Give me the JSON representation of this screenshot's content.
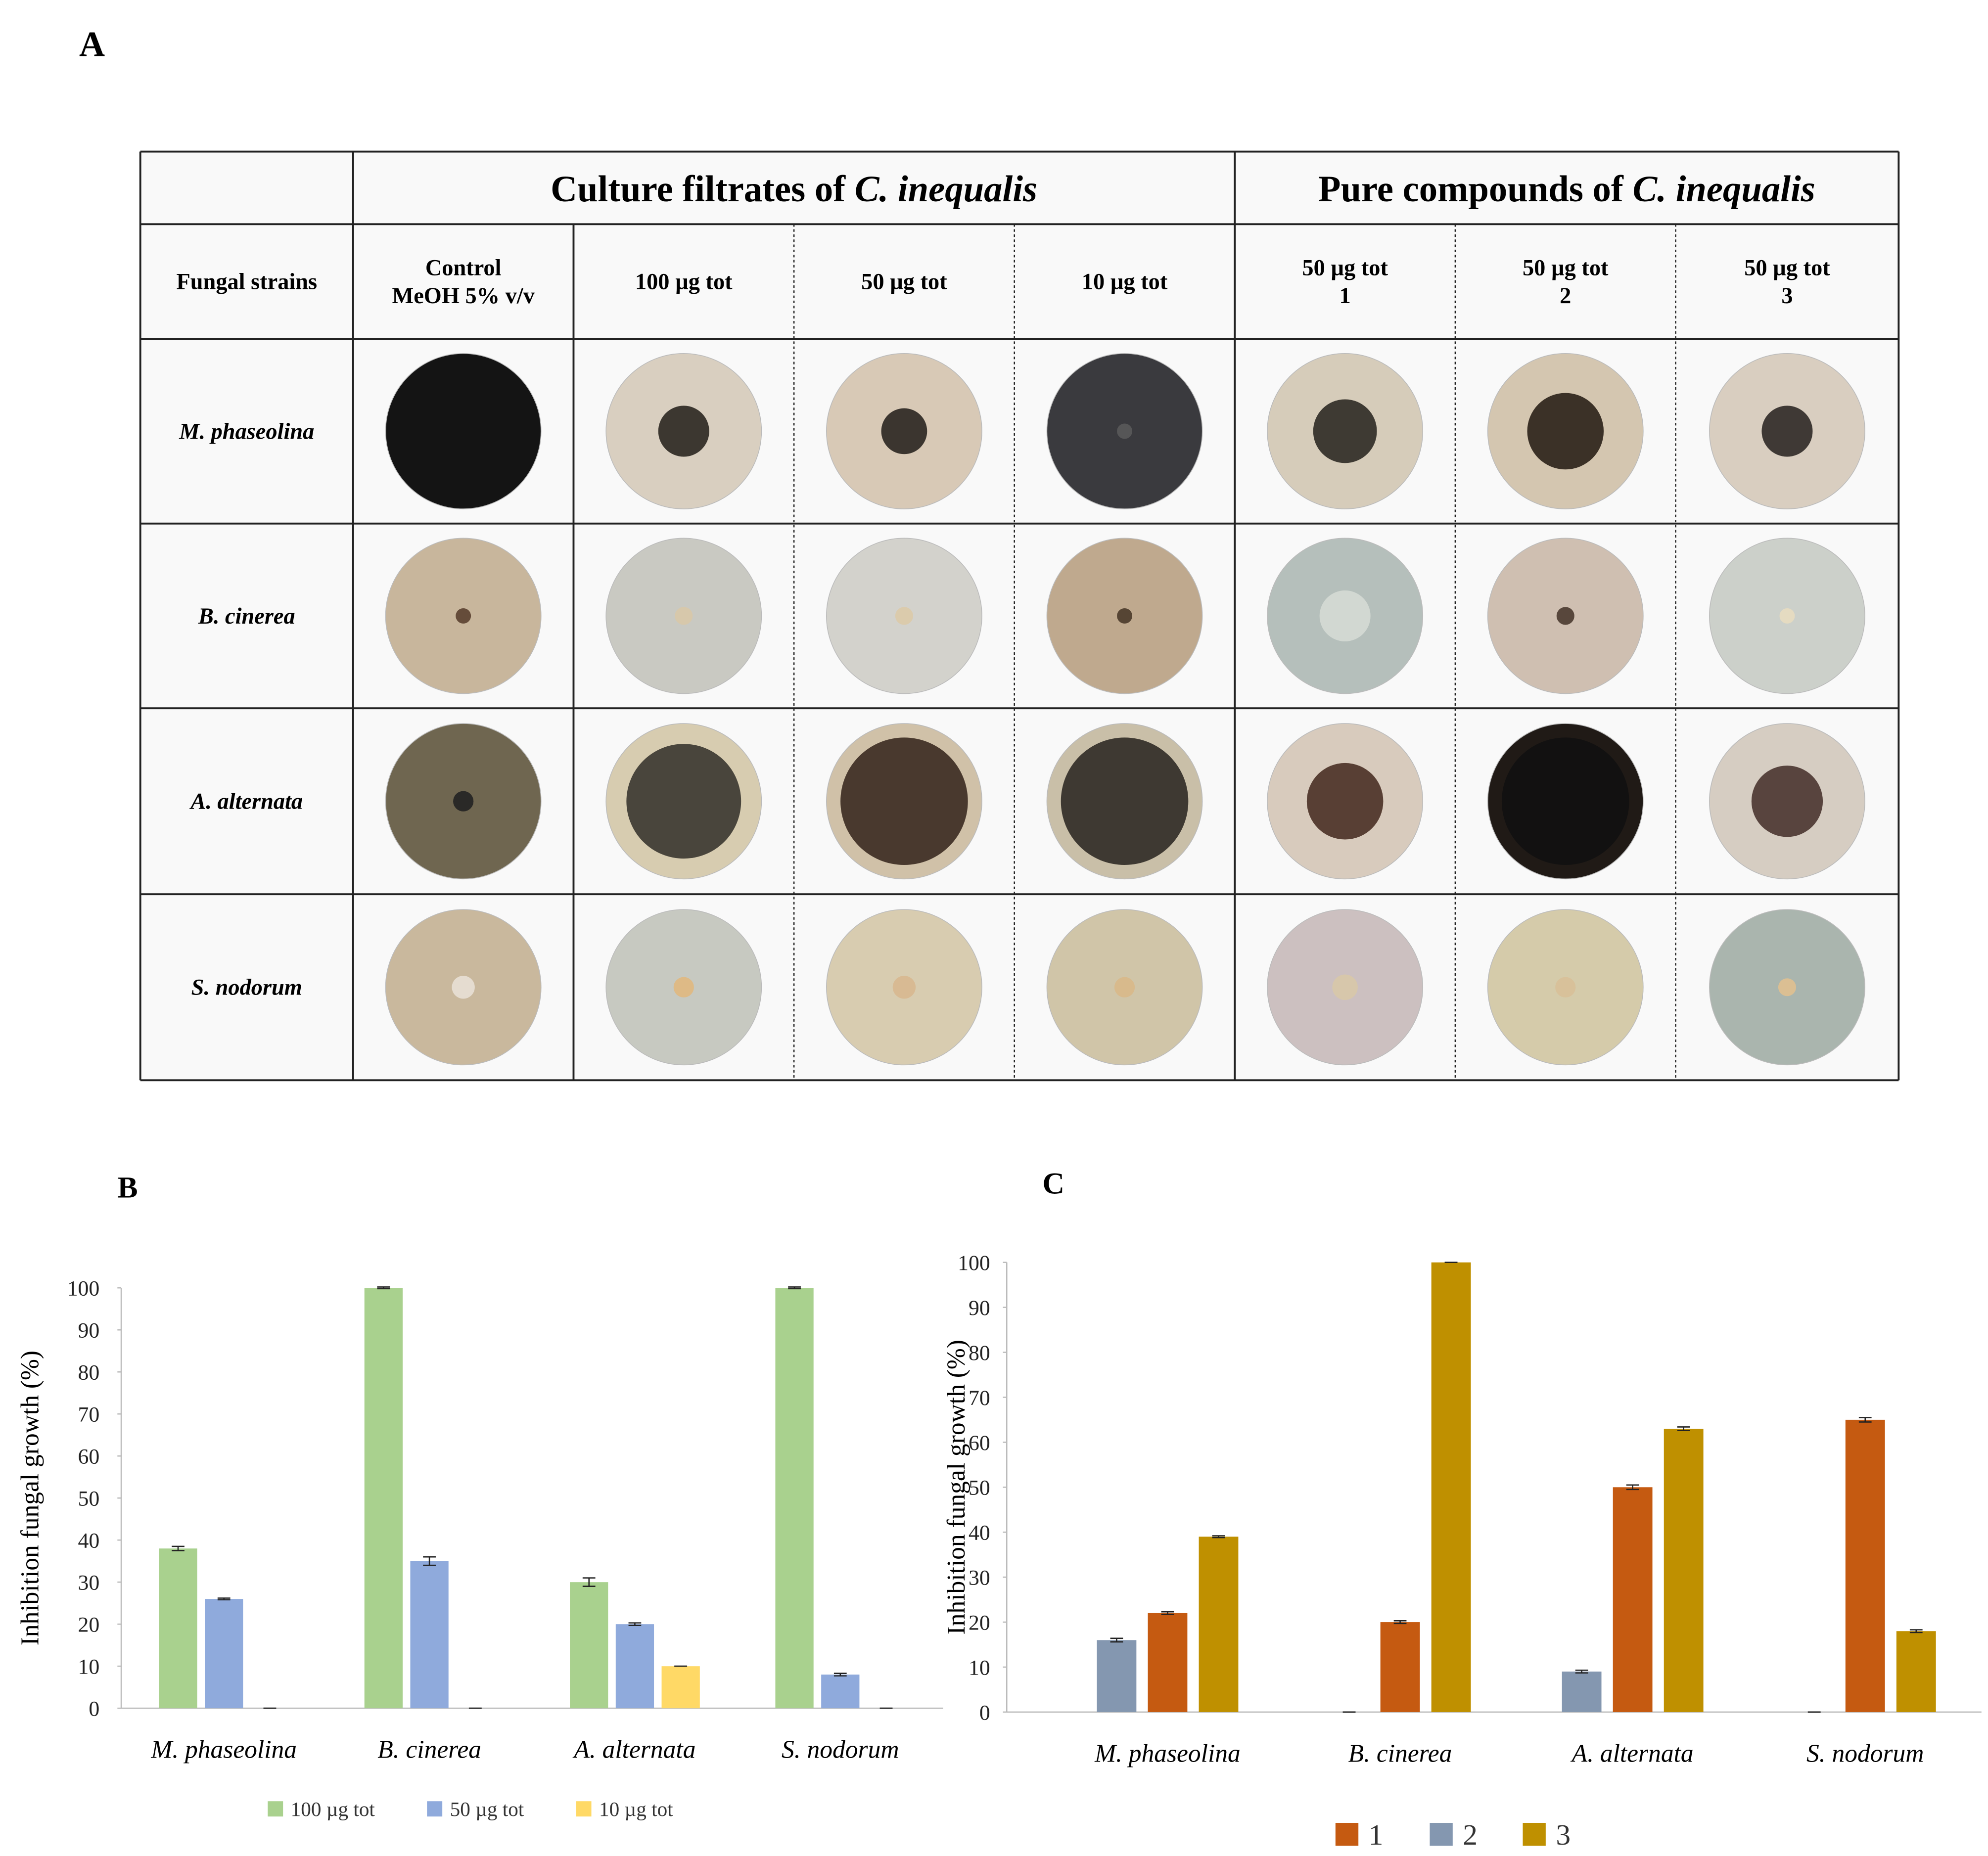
{
  "panels": [
    "A",
    "B",
    "C"
  ],
  "table": {
    "groups": [
      {
        "text": "Culture filtrates of",
        "italic": "C. inequalis"
      },
      {
        "text": "Pure compounds of",
        "italic": "C. inequalis"
      }
    ],
    "columns": [
      [
        "Fungal strains"
      ],
      [
        "Control",
        "MeOH 5% v/v"
      ],
      [
        "100 µg tot"
      ],
      [
        "50 µg tot"
      ],
      [
        "10 µg tot"
      ],
      [
        "50 µg tot",
        "1"
      ],
      [
        "50 µg tot",
        "2"
      ],
      [
        "50 µg tot",
        "3"
      ]
    ],
    "rows": [
      "M. phaseolina",
      "B. cinerea",
      "A. alternata",
      "S. nodorum"
    ]
  },
  "chart_data": [
    {
      "type": "bar",
      "ylabel": "Inhibition fungal growth (%)",
      "categories": [
        "M. phaseolina",
        "B. cinerea",
        "A. alternata",
        "S. nodorum"
      ],
      "series": [
        {
          "name": "100 µg tot",
          "color": "#a9d18e",
          "values": [
            38,
            100,
            30,
            100
          ],
          "errors": [
            0.5,
            0.2,
            1,
            0.2
          ]
        },
        {
          "name": "50 µg tot",
          "color": "#8faadc",
          "values": [
            26,
            35,
            20,
            8
          ],
          "errors": [
            0.2,
            1,
            0.3,
            0.3
          ]
        },
        {
          "name": "10 µg tot",
          "color": "#ffd966",
          "values": [
            0,
            0,
            10,
            0
          ],
          "errors": [
            0,
            0,
            0,
            0
          ]
        }
      ],
      "ylim": [
        0,
        100
      ],
      "yticks": [
        0,
        10,
        20,
        30,
        40,
        50,
        60,
        70,
        80,
        90,
        100
      ],
      "grid": false,
      "legend": "bottom"
    },
    {
      "type": "bar",
      "ylabel": "Inhibition fungal growth (%)",
      "categories": [
        "M. phaseolina",
        "B. cinerea",
        "A. alternata",
        "S. nodorum"
      ],
      "series": [
        {
          "name": "1",
          "color": "#c55a11",
          "values": [
            22,
            20,
            50,
            65
          ],
          "errors": [
            0.3,
            0.3,
            0.5,
            0.5
          ]
        },
        {
          "name": "2",
          "color": "#8497b0",
          "values": [
            16,
            0,
            9,
            0
          ],
          "errors": [
            0.4,
            0,
            0.3,
            0
          ]
        },
        {
          "name": "3",
          "color": "#bf9000",
          "values": [
            39,
            100,
            63,
            18
          ],
          "errors": [
            0.2,
            0,
            0.4,
            0.3
          ]
        }
      ],
      "ylim": [
        0,
        100
      ],
      "yticks": [
        0,
        10,
        20,
        30,
        40,
        50,
        60,
        70,
        80,
        90,
        100
      ],
      "grid": false,
      "legend": "bottom"
    }
  ]
}
